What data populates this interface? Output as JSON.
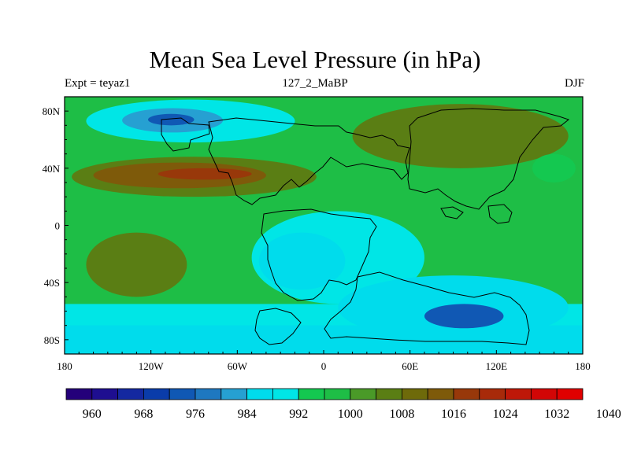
{
  "title": "Mean Sea Level Pressure (in hPa)",
  "subtitle_left": "Expt = teyaz1",
  "subtitle_center": "127_2_MaBP",
  "subtitle_right": "DJF",
  "x_ticks": [
    {
      "lon": -180,
      "label": "180"
    },
    {
      "lon": -120,
      "label": "120W"
    },
    {
      "lon": -60,
      "label": "60W"
    },
    {
      "lon": 0,
      "label": "0"
    },
    {
      "lon": 60,
      "label": "60E"
    },
    {
      "lon": 120,
      "label": "120E"
    },
    {
      "lon": 180,
      "label": "180"
    }
  ],
  "y_ticks": [
    {
      "lat": 80,
      "label": "80N"
    },
    {
      "lat": 40,
      "label": "40N"
    },
    {
      "lat": 0,
      "label": "0"
    },
    {
      "lat": -40,
      "label": "40S"
    },
    {
      "lat": -80,
      "label": "80S"
    }
  ],
  "colorbar": {
    "colors": [
      "#24007a",
      "#1e0e90",
      "#1428a0",
      "#0a3caa",
      "#1058b4",
      "#1e78c0",
      "#26a0d2",
      "#00dcec",
      "#00e6e6",
      "#14c850",
      "#1ebe46",
      "#4a9a28",
      "#5a7e14",
      "#6e6a0a",
      "#7e5a0a",
      "#98380a",
      "#a82a0a",
      "#be1808",
      "#d20606",
      "#e00000"
    ],
    "labels": [
      "960",
      "968",
      "976",
      "984",
      "992",
      "1000",
      "1008",
      "1016",
      "1024",
      "1032",
      "1040"
    ]
  },
  "chart_data": {
    "type": "heatmap",
    "title": "Mean Sea Level Pressure (in hPa)",
    "units": "hPa",
    "x_range": [
      -180,
      180
    ],
    "y_range": [
      -90,
      90
    ],
    "levels": [
      960,
      964,
      968,
      972,
      976,
      980,
      984,
      988,
      992,
      996,
      1000,
      1004,
      1008,
      1012,
      1016,
      1020,
      1024,
      1028,
      1032,
      1036,
      1040
    ],
    "background": {
      "level": 1002
    },
    "regions": [
      {
        "name": "southern-ocean-band",
        "lon": [
          -180,
          180
        ],
        "lat": [
          -90,
          -68
        ],
        "value": 990
      },
      {
        "name": "southern-mid-latitude-band",
        "lon": [
          -180,
          180
        ],
        "lat": [
          -70,
          -55
        ],
        "value": 994
      },
      {
        "name": "north-atlantic-pacific-low-outer",
        "lon": [
          -165,
          -20
        ],
        "lat": [
          58,
          88
        ],
        "value": 992
      },
      {
        "name": "north-low-inner",
        "lon": [
          -140,
          -70
        ],
        "lat": [
          65,
          82
        ],
        "value": 986
      },
      {
        "name": "north-low-core",
        "lon": [
          -122,
          -90
        ],
        "lat": [
          70,
          78
        ],
        "value": 978
      },
      {
        "name": "subtropical-high-north-outer",
        "lon": [
          -175,
          -5
        ],
        "lat": [
          20,
          48
        ],
        "value": 1010
      },
      {
        "name": "subtropical-high-north-inner",
        "lon": [
          -160,
          -40
        ],
        "lat": [
          26,
          44
        ],
        "value": 1016
      },
      {
        "name": "subtropical-high-north-core",
        "lon": [
          -115,
          -50
        ],
        "lat": [
          32,
          40
        ],
        "value": 1020
      },
      {
        "name": "asian-high",
        "lon": [
          20,
          170
        ],
        "lat": [
          40,
          85
        ],
        "value": 1010
      },
      {
        "name": "south-pacific-high",
        "lon": [
          -165,
          -95
        ],
        "lat": [
          -50,
          -5
        ],
        "value": 1010
      },
      {
        "name": "gondwana-low-outer",
        "lon": [
          -50,
          70
        ],
        "lat": [
          -55,
          10
        ],
        "value": 994
      },
      {
        "name": "gondwana-low-inner",
        "lon": [
          -45,
          15
        ],
        "lat": [
          -45,
          -5
        ],
        "value": 990
      },
      {
        "name": "southern-low-outer",
        "lon": [
          10,
          170
        ],
        "lat": [
          -80,
          -35
        ],
        "value": 988
      },
      {
        "name": "southern-low-core",
        "lon": [
          70,
          125
        ],
        "lat": [
          -72,
          -55
        ],
        "value": 978
      },
      {
        "name": "northeast-pacific-low",
        "lon": [
          145,
          175
        ],
        "lat": [
          30,
          50
        ],
        "value": 996
      }
    ]
  }
}
